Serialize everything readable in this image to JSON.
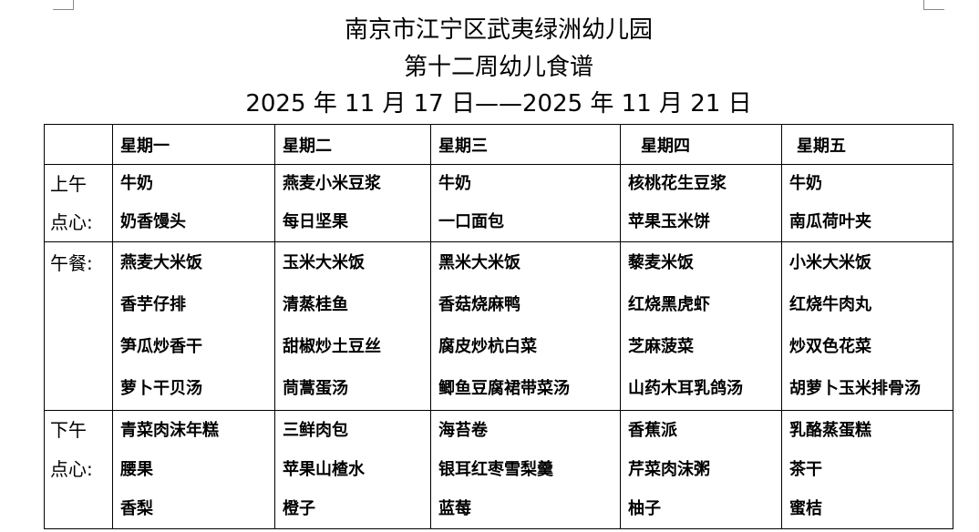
{
  "header": {
    "school": "南京市江宁区武夷绿洲幼儿园",
    "title": "第十二周幼儿食谱",
    "date_range": "2025 年 11 月 17 日——2025 年 11 月 21 日"
  },
  "table": {
    "days": [
      "星期一",
      "星期二",
      "星期三",
      "星期四",
      "星期五"
    ],
    "rows": [
      {
        "label": [
          "上午",
          "点心:"
        ],
        "meals": [
          [
            "牛奶",
            "奶香馒头"
          ],
          [
            "燕麦小米豆浆",
            "每日坚果"
          ],
          [
            "牛奶",
            "一口面包"
          ],
          [
            "核桃花生豆浆",
            "苹果玉米饼"
          ],
          [
            "牛奶",
            "南瓜荷叶夹"
          ]
        ]
      },
      {
        "label": [
          "午餐:"
        ],
        "meals": [
          [
            "燕麦大米饭",
            "香芋仔排",
            "笋瓜炒香干",
            "萝卜干贝汤"
          ],
          [
            "玉米大米饭",
            "清蒸桂鱼",
            "甜椒炒土豆丝",
            "茼蒿蛋汤"
          ],
          [
            "黑米大米饭",
            "香菇烧麻鸭",
            "腐皮炒杭白菜",
            "鲫鱼豆腐裙带菜汤"
          ],
          [
            "藜麦米饭",
            "红烧黑虎虾",
            "芝麻菠菜",
            "山药木耳乳鸽汤"
          ],
          [
            "小米大米饭",
            "红烧牛肉丸",
            "炒双色花菜",
            "胡萝卜玉米排骨汤"
          ]
        ]
      },
      {
        "label": [
          "下午",
          "点心:"
        ],
        "meals": [
          [
            "青菜肉沫年糕",
            "腰果",
            "香梨"
          ],
          [
            "三鲜肉包",
            "苹果山楂水",
            "橙子"
          ],
          [
            "海苔卷",
            "银耳红枣雪梨羹",
            "蓝莓"
          ],
          [
            "香蕉派",
            "芹菜肉沫粥",
            "柚子"
          ],
          [
            "乳酪蒸蛋糕",
            "茶干",
            "蜜桔"
          ]
        ]
      }
    ]
  }
}
